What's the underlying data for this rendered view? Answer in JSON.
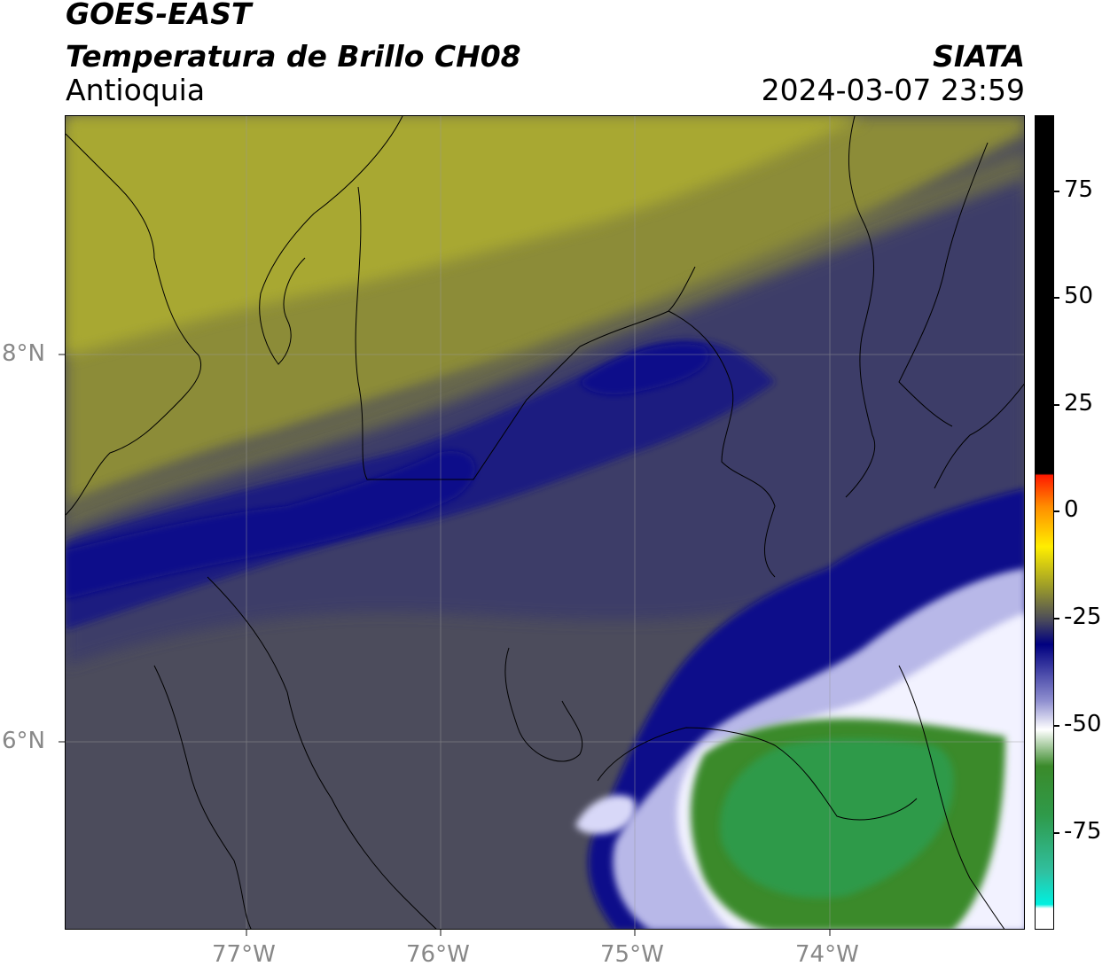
{
  "header": {
    "satellite": "GOES-EAST",
    "product": "Temperatura de Brillo CH08",
    "region": "Antioquia",
    "organization": "SIATA",
    "datetime": "2024-03-07 23:59"
  },
  "axes": {
    "lon_labels": [
      "77°W",
      "76°W",
      "75°W",
      "74°W"
    ],
    "lat_labels": [
      "8°N",
      "6°N"
    ]
  },
  "colorbar": {
    "ticks": [
      "75",
      "50",
      "25",
      "0",
      "-25",
      "-50",
      "-75"
    ],
    "colors": {
      "hot": "#000000",
      "red": "#ff1a00",
      "orange": "#ff8c00",
      "yellow": "#ffee00",
      "olive": "#9a9a2a",
      "gray": "#4a4a5a",
      "navy": "#000080",
      "lavender": "#9090d0",
      "white": "#ffffff",
      "green": "#3a8a2a",
      "teal": "#30c0a0",
      "cyan": "#00f0e0"
    }
  },
  "map_colors": {
    "olive_light": "#a8a830",
    "olive": "#8c8c38",
    "olive_dark": "#6e6e48",
    "gray": "#4c4c5c",
    "slate": "#3c3c68",
    "navy_light": "#1e1e80",
    "navy": "#0a0a8a",
    "white": "#f2f2ff",
    "green": "#2f9a4a",
    "green_dark": "#3a8a2a"
  }
}
